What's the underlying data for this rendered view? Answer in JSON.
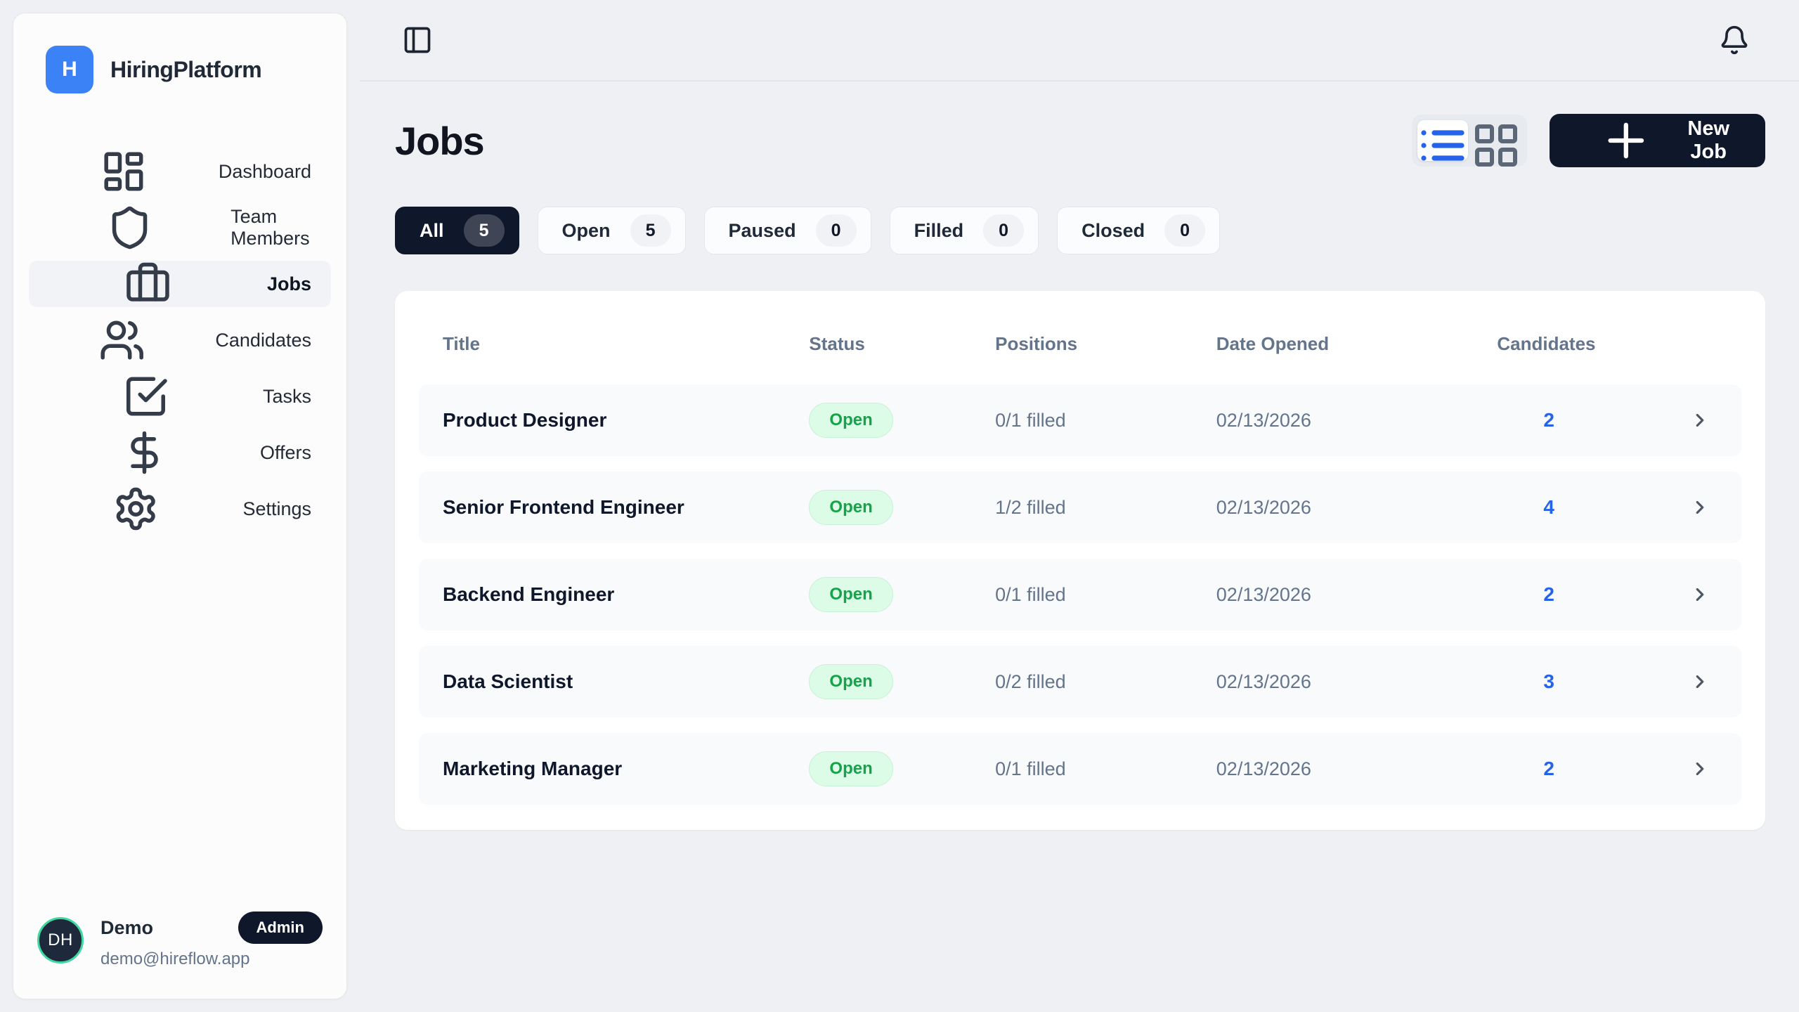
{
  "app": {
    "name": "HiringPlatform",
    "logo_letter": "H"
  },
  "colors": {
    "accent_blue": "#3b82f6",
    "navy": "#0f172a",
    "open_badge_bg": "#dcfce7",
    "open_badge_text": "#16a34a",
    "candidates_link_blue": "#2563eb",
    "avatar_ring_teal": "#3fd8a0",
    "page_background": "#eef0f4"
  },
  "sidebar": {
    "nav": [
      {
        "label": "Dashboard",
        "icon": "dashboard-icon",
        "active": false
      },
      {
        "label": "Team Members",
        "icon": "shield-icon",
        "active": false
      },
      {
        "label": "Jobs",
        "icon": "briefcase-icon",
        "active": true
      },
      {
        "label": "Candidates",
        "icon": "users-icon",
        "active": false
      },
      {
        "label": "Tasks",
        "icon": "check-square-icon",
        "active": false
      },
      {
        "label": "Offers",
        "icon": "dollar-icon",
        "active": false
      },
      {
        "label": "Settings",
        "icon": "gear-icon",
        "active": false
      }
    ],
    "user": {
      "initials": "DH",
      "name": "Demo",
      "role_badge": "Admin",
      "email": "demo@hireflow.app"
    }
  },
  "topbar": {
    "sidebar_toggle_icon": "panel-left-icon",
    "notifications_icon": "bell-icon"
  },
  "page": {
    "title": "Jobs",
    "new_job_label": "New Job",
    "new_job_icon": "plus-icon",
    "view_toggle": [
      {
        "icon": "list-icon",
        "active": true
      },
      {
        "icon": "grid-icon",
        "active": false
      }
    ]
  },
  "filters": [
    {
      "label": "All",
      "count": "5",
      "active": true
    },
    {
      "label": "Open",
      "count": "5",
      "active": false
    },
    {
      "label": "Paused",
      "count": "0",
      "active": false
    },
    {
      "label": "Filled",
      "count": "0",
      "active": false
    },
    {
      "label": "Closed",
      "count": "0",
      "active": false
    }
  ],
  "table": {
    "columns": {
      "title": "Title",
      "status": "Status",
      "positions": "Positions",
      "date_opened": "Date Opened",
      "candidates": "Candidates"
    },
    "rows": [
      {
        "title": "Product Designer",
        "status": "Open",
        "positions": "0/1 filled",
        "date_opened": "02/13/2026",
        "candidates": "2"
      },
      {
        "title": "Senior Frontend Engineer",
        "status": "Open",
        "positions": "1/2 filled",
        "date_opened": "02/13/2026",
        "candidates": "4"
      },
      {
        "title": "Backend Engineer",
        "status": "Open",
        "positions": "0/1 filled",
        "date_opened": "02/13/2026",
        "candidates": "2"
      },
      {
        "title": "Data Scientist",
        "status": "Open",
        "positions": "0/2 filled",
        "date_opened": "02/13/2026",
        "candidates": "3"
      },
      {
        "title": "Marketing Manager",
        "status": "Open",
        "positions": "0/1 filled",
        "date_opened": "02/13/2026",
        "candidates": "2"
      }
    ]
  }
}
